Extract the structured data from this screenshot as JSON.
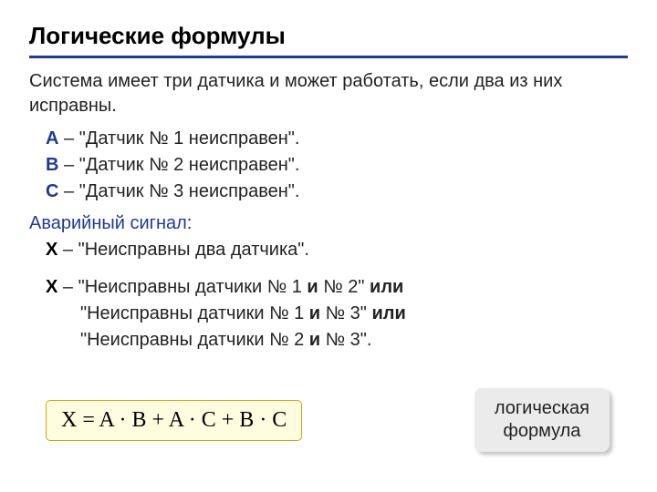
{
  "title": "Логические формулы",
  "intro": "Система имеет три датчика и может работать, если два из них исправны.",
  "defs": [
    {
      "label": "A",
      "sep": " – ",
      "text": "\"Датчик № 1 неисправен\"."
    },
    {
      "label": "B",
      "sep": " – ",
      "text": "\"Датчик № 2 неисправен\"."
    },
    {
      "label": "C",
      "sep": " – ",
      "text": "\"Датчик № 3 неисправен\"."
    }
  ],
  "alarm_label": "Аварийный сигнал",
  "alarm_colon": ":",
  "x_summary": {
    "label": "X",
    "sep": " – ",
    "text": "\"Неисправны два датчика\"."
  },
  "x_detail": {
    "label": "X",
    "sep": " – ",
    "lines": [
      {
        "pre": "\"Неисправны датчики № 1 ",
        "and": "и",
        "mid": " № 2\" ",
        "or": "или"
      },
      {
        "pre": "\"Неисправны датчики № 1 ",
        "and": "и",
        "mid": " № 3\" ",
        "or": "или"
      },
      {
        "pre": "\"Неисправны датчики № 2 ",
        "and": "и",
        "mid": " № 3\".",
        "or": ""
      }
    ]
  },
  "formula": "X = A · B + A · C + B · C",
  "callout_line1": "логическая",
  "callout_line2": "формула",
  "styles": {
    "accent_color": "#1f3a93",
    "text_color": "#222222",
    "formula_bg": "#fffde0",
    "formula_border": "#d4a017",
    "callout_bg": "#ebebeb",
    "title_fontsize": 26,
    "body_fontsize": 20,
    "formula_fontsize": 24
  }
}
